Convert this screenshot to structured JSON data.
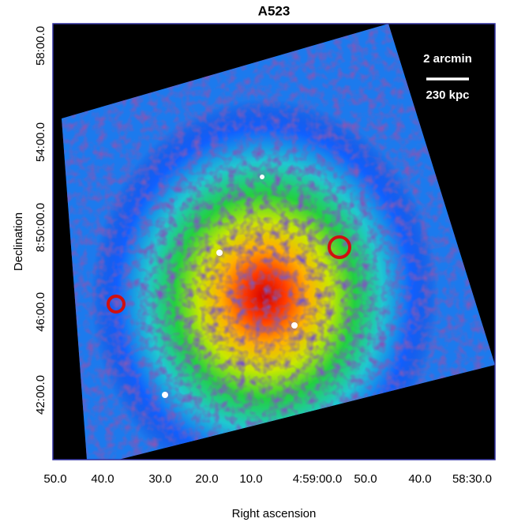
{
  "figure": {
    "title": "A523",
    "x_axis_label": "Right ascension",
    "y_axis_label": "Declination",
    "x_tick_labels": [
      "50.0",
      "40.0",
      "30.0",
      "20.0",
      "10.0",
      "4:59:00.0",
      "50.0",
      "40.0",
      "58:30.0"
    ],
    "y_tick_labels": [
      "58:00.0",
      "54:00.0",
      "8:50:00.0",
      "46:00.0",
      "42:00.0"
    ],
    "scale_bar": {
      "top_label": "2 arcmin",
      "bottom_label": "230 kpc"
    }
  }
}
